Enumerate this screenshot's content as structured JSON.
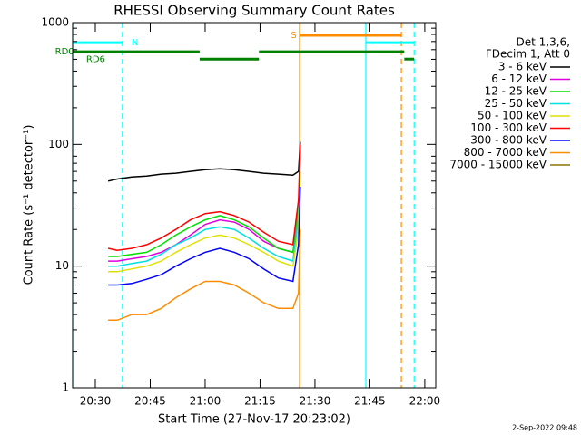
{
  "chart_data": {
    "type": "line",
    "title": "RHESSI Observing Summary Count Rates",
    "x_label": "Start Time (27-Nov-17 20:23:02)",
    "y_label": "Count Rate (s⁻¹ detector⁻¹)",
    "log_y": true,
    "xlim": [
      1223.8,
      1323
    ],
    "ylim": [
      1,
      1000
    ],
    "xticks": [
      {
        "value": 1230,
        "label": "20:30"
      },
      {
        "value": 1245,
        "label": "20:45"
      },
      {
        "value": 1260,
        "label": "21:00"
      },
      {
        "value": 1275,
        "label": "21:15"
      },
      {
        "value": 1290,
        "label": "21:30"
      },
      {
        "value": 1305,
        "label": "21:45"
      },
      {
        "value": 1320,
        "label": "22:00"
      }
    ],
    "yticks": [
      1,
      10,
      100,
      1000
    ],
    "legend_header": [
      "Det 1,3,6,",
      "FDecim 1, Att 0"
    ],
    "x": [
      1233.5,
      1236,
      1240,
      1244,
      1248,
      1252,
      1256,
      1260,
      1264,
      1268,
      1272,
      1276,
      1280,
      1284,
      1285.5,
      1286
    ],
    "series": [
      {
        "name": "3 - 6 keV",
        "color": "#000000",
        "values": [
          50,
          52,
          54,
          55,
          57,
          58,
          60,
          62,
          63,
          62,
          60,
          58,
          57,
          56,
          60,
          105
        ]
      },
      {
        "name": "6 - 12 keV",
        "color": "#e000e0",
        "values": [
          11,
          11,
          11.5,
          12,
          13,
          15,
          18,
          22,
          24,
          23,
          20,
          16,
          14,
          13,
          25,
          90
        ]
      },
      {
        "name": "12 - 25 keV",
        "color": "#00e000",
        "values": [
          12,
          12,
          12.5,
          13,
          15,
          18,
          21,
          24,
          26,
          24,
          21,
          17,
          14,
          13,
          30,
          80
        ]
      },
      {
        "name": "25 - 50 keV",
        "color": "#00e0e0",
        "values": [
          10,
          10,
          10.5,
          11,
          12.5,
          15,
          17,
          20,
          21,
          20,
          17,
          14,
          12,
          11,
          25,
          70
        ]
      },
      {
        "name": "50 - 100 keV",
        "color": "#e0e000",
        "values": [
          9,
          9,
          9.5,
          10,
          11,
          13,
          15,
          17,
          18,
          17,
          15,
          13,
          11,
          10,
          20,
          60
        ]
      },
      {
        "name": "100 - 300 keV",
        "color": "#ff0000",
        "values": [
          14,
          13.5,
          14,
          15,
          17,
          20,
          24,
          27,
          28,
          26,
          23,
          19,
          16,
          15,
          35,
          100
        ]
      },
      {
        "name": "300 - 800 keV",
        "color": "#0000ff",
        "values": [
          7,
          7,
          7.2,
          7.8,
          8.5,
          10,
          11.5,
          13,
          14,
          13,
          11.5,
          9.5,
          8,
          7.5,
          15,
          45
        ]
      },
      {
        "name": "800 - 7000 keV",
        "color": "#ff8c00",
        "values": [
          3.6,
          3.6,
          4,
          4,
          4.5,
          5.5,
          6.5,
          7.5,
          7.5,
          7,
          6,
          5,
          4.5,
          4.5,
          6,
          20
        ]
      },
      {
        "name": "7000 - 15000 keV",
        "color": "#8b7500",
        "values": [
          null,
          null,
          null,
          null,
          null,
          null,
          null,
          null,
          null,
          null,
          null,
          null,
          null,
          null,
          null,
          null
        ]
      }
    ],
    "bars": [
      {
        "color": "#00ffff",
        "x": [
          1223.8,
          1237.4
        ],
        "y": 685
      },
      {
        "color": "#00ffff",
        "x": [
          1303.9,
          1317.1
        ],
        "y": 685
      },
      {
        "color": "#ff8c00",
        "x": [
          1285.8,
          1313.6
        ],
        "y": 786
      },
      {
        "color": "#008000",
        "x": [
          1223.8,
          1258.5
        ],
        "y": 577
      },
      {
        "color": "#008000",
        "x": [
          1258.5,
          1274.7
        ],
        "y": 502
      },
      {
        "color": "#008000",
        "x": [
          1274.7,
          1314.4
        ],
        "y": 577
      },
      {
        "color": "#008000",
        "x": [
          1314.4,
          1317.1
        ],
        "y": 502
      }
    ],
    "markers": [
      {
        "x": 1223.8,
        "color": "#00ffff",
        "dashed": false
      },
      {
        "x": 1237.4,
        "color": "#00ffff",
        "dashed": true
      },
      {
        "x": 1285.8,
        "color": "#ff8c00",
        "dashed": false
      },
      {
        "x": 1303.9,
        "color": "#00ffff",
        "dashed": false
      },
      {
        "x": 1313.6,
        "color": "#ff8c00",
        "dashed": true
      },
      {
        "x": 1317.1,
        "color": "#00ffff",
        "dashed": true
      }
    ],
    "annotations": [
      {
        "text": "RD0",
        "x": 1219,
        "y": 577,
        "color": "#008000"
      },
      {
        "text": "RD6",
        "x": 1227.5,
        "y": 500,
        "color": "#008000"
      },
      {
        "text": "N",
        "x": 1239.9,
        "y": 685,
        "color": "#00ffff"
      },
      {
        "text": "S",
        "x": 1283.4,
        "y": 786,
        "color": "#ff8c00"
      }
    ],
    "footer": "2-Sep-2022 09:48"
  }
}
